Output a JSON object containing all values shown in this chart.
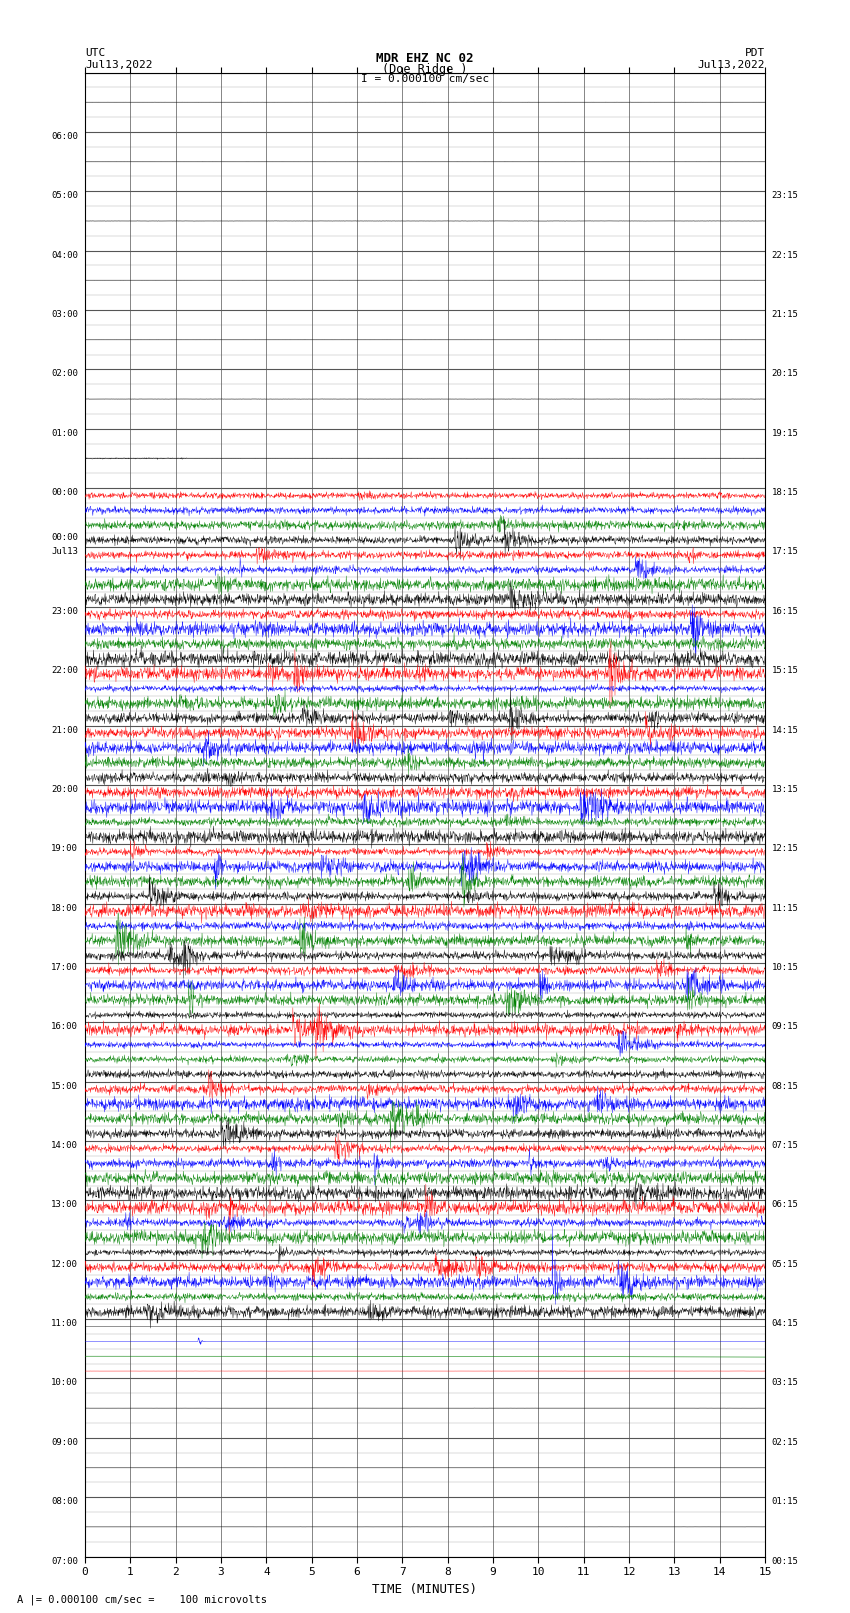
{
  "title_line1": "MDR EHZ NC 02",
  "title_line2": "(Doe Ridge )",
  "scale_label": "I = 0.000100 cm/sec",
  "footer_label": "A |= 0.000100 cm/sec =    100 microvolts",
  "utc_label": "UTC",
  "utc_date": "Jul13,2022",
  "pdt_label": "PDT",
  "pdt_date": "Jul13,2022",
  "xlabel": "TIME (MINUTES)",
  "xlim": [
    0,
    15
  ],
  "xticks": [
    0,
    1,
    2,
    3,
    4,
    5,
    6,
    7,
    8,
    9,
    10,
    11,
    12,
    13,
    14,
    15
  ],
  "left_labels": [
    "07:00",
    "",
    "",
    "",
    "08:00",
    "",
    "",
    "",
    "09:00",
    "",
    "",
    "",
    "10:00",
    "",
    "",
    "",
    "11:00",
    "",
    "",
    "",
    "12:00",
    "",
    "",
    "",
    "13:00",
    "",
    "",
    "",
    "14:00",
    "",
    "",
    "",
    "15:00",
    "",
    "",
    "",
    "16:00",
    "",
    "",
    "",
    "17:00",
    "",
    "",
    "",
    "18:00",
    "",
    "",
    "",
    "19:00",
    "",
    "",
    "",
    "20:00",
    "",
    "",
    "",
    "21:00",
    "",
    "",
    "",
    "22:00",
    "",
    "",
    "",
    "23:00",
    "",
    "",
    "",
    "Jul13\n00:00",
    "",
    "",
    "",
    "01:00",
    "",
    "",
    "",
    "02:00",
    "",
    "",
    "",
    "03:00",
    "",
    "",
    "",
    "04:00",
    "",
    "",
    "",
    "05:00",
    "",
    "",
    "",
    "06:00",
    "",
    "",
    ""
  ],
  "left_labels_major": [
    "07:00",
    "08:00",
    "09:00",
    "10:00",
    "11:00",
    "12:00",
    "13:00",
    "14:00",
    "15:00",
    "16:00",
    "17:00",
    "18:00",
    "19:00",
    "20:00",
    "21:00",
    "22:00",
    "23:00",
    "Jul13",
    "00:00",
    "01:00",
    "02:00",
    "03:00",
    "04:00",
    "05:00",
    "06:00"
  ],
  "right_labels": [
    "00:15",
    "01:15",
    "02:15",
    "03:15",
    "04:15",
    "05:15",
    "06:15",
    "07:15",
    "08:15",
    "09:15",
    "10:15",
    "11:15",
    "12:15",
    "13:15",
    "14:15",
    "15:15",
    "16:15",
    "17:15",
    "18:15",
    "19:15",
    "20:15",
    "21:15",
    "22:15",
    "23:15"
  ],
  "background_color": "white",
  "fig_width": 8.5,
  "fig_height": 16.13
}
